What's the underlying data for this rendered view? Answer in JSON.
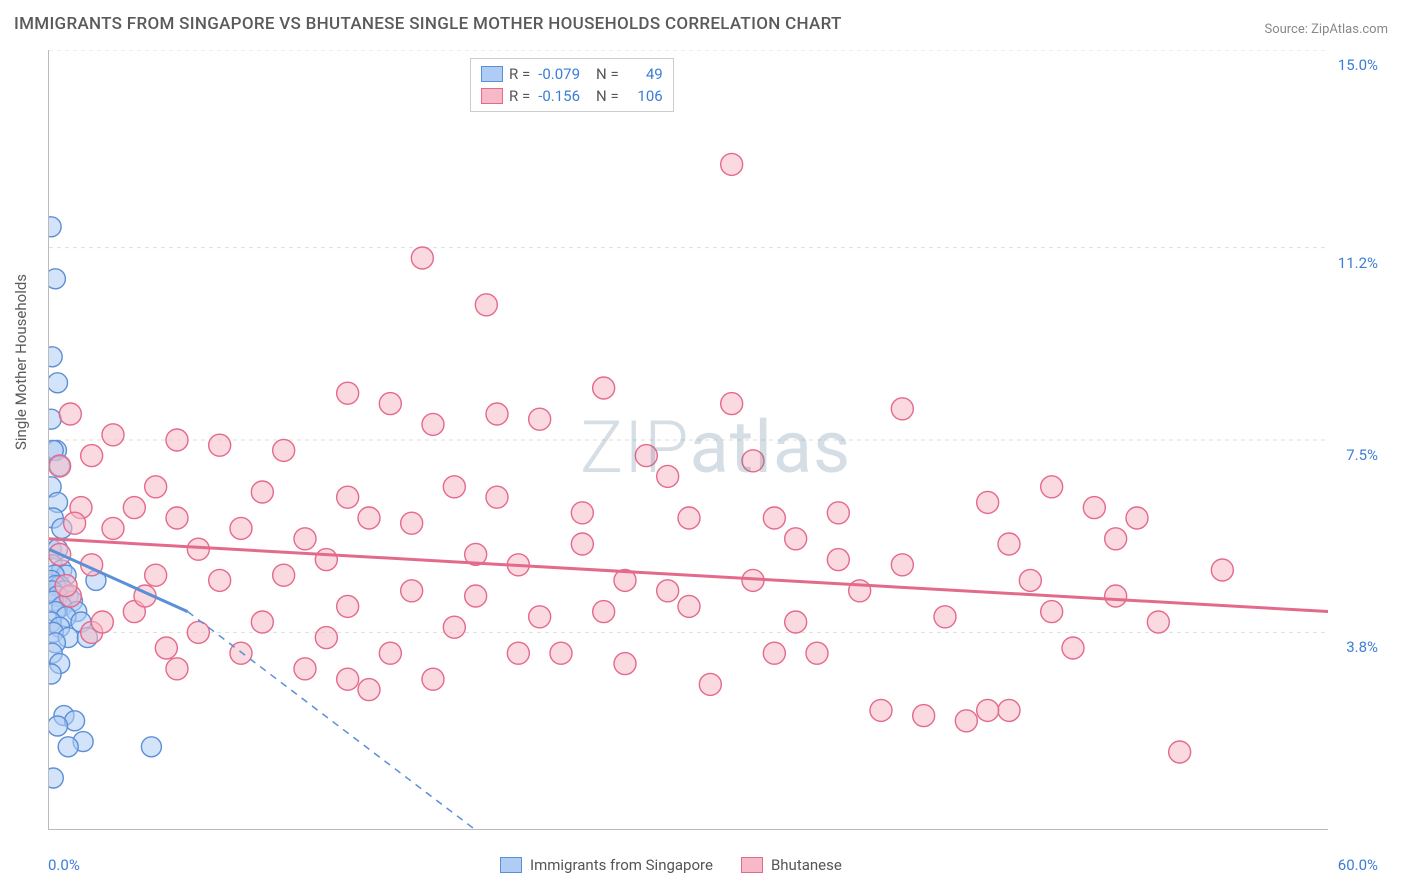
{
  "title": "IMMIGRANTS FROM SINGAPORE VS BHUTANESE SINGLE MOTHER HOUSEHOLDS CORRELATION CHART",
  "source": "Source: ZipAtlas.com",
  "y_axis_label": "Single Mother Households",
  "watermark_a": "ZIP",
  "watermark_b": "atlas",
  "chart": {
    "type": "scatter",
    "background_color": "#ffffff",
    "grid_color": "#dddddd",
    "axis_color": "#bbbbbb",
    "text_color": "#5a5a5a",
    "value_color": "#3b7dd8",
    "xlim": [
      0,
      60
    ],
    "ylim": [
      0,
      15
    ],
    "x_min_label": "0.0%",
    "x_max_label": "60.0%",
    "y_ticks": [
      {
        "v": 3.8,
        "label": "3.8%"
      },
      {
        "v": 7.5,
        "label": "7.5%"
      },
      {
        "v": 11.2,
        "label": "11.2%"
      },
      {
        "v": 15.0,
        "label": "15.0%"
      }
    ],
    "x_tick_positions": [
      6,
      12,
      18,
      24,
      30,
      36,
      42,
      48,
      54
    ],
    "series": [
      {
        "name": "Immigrants from Singapore",
        "fill": "#aeccf4",
        "stroke": "#5b8fd6",
        "fill_opacity": 0.55,
        "R": "-0.079",
        "N": "49",
        "regression": {
          "x1": 0,
          "y1": 5.4,
          "x2": 6.5,
          "y2": 4.2
        },
        "extrapolation": {
          "x1": 6.5,
          "y1": 4.2,
          "x2": 20,
          "y2": 0.0
        },
        "marker_r": 10,
        "points": [
          [
            0.1,
            11.6
          ],
          [
            0.3,
            10.6
          ],
          [
            0.15,
            9.1
          ],
          [
            0.4,
            8.6
          ],
          [
            0.1,
            7.9
          ],
          [
            0.35,
            7.3
          ],
          [
            0.2,
            7.3
          ],
          [
            0.5,
            7.0
          ],
          [
            0.1,
            6.6
          ],
          [
            0.4,
            6.3
          ],
          [
            0.2,
            6.0
          ],
          [
            0.6,
            5.8
          ],
          [
            0.1,
            5.4
          ],
          [
            0.4,
            5.4
          ],
          [
            0.15,
            5.1
          ],
          [
            0.6,
            5.0
          ],
          [
            0.8,
            4.9
          ],
          [
            0.25,
            4.9
          ],
          [
            0.1,
            4.8
          ],
          [
            0.5,
            4.7
          ],
          [
            0.3,
            4.7
          ],
          [
            0.7,
            4.6
          ],
          [
            0.15,
            4.6
          ],
          [
            0.9,
            4.5
          ],
          [
            0.4,
            4.5
          ],
          [
            1.1,
            4.4
          ],
          [
            0.2,
            4.4
          ],
          [
            0.6,
            4.3
          ],
          [
            1.3,
            4.2
          ],
          [
            0.3,
            4.2
          ],
          [
            0.8,
            4.1
          ],
          [
            0.1,
            4.0
          ],
          [
            1.5,
            4.0
          ],
          [
            0.5,
            3.9
          ],
          [
            0.2,
            3.8
          ],
          [
            0.9,
            3.7
          ],
          [
            1.8,
            3.7
          ],
          [
            0.3,
            3.6
          ],
          [
            0.15,
            3.4
          ],
          [
            0.7,
            2.2
          ],
          [
            1.2,
            2.1
          ],
          [
            0.4,
            2.0
          ],
          [
            1.6,
            1.7
          ],
          [
            0.9,
            1.6
          ],
          [
            4.8,
            1.6
          ],
          [
            0.2,
            1.0
          ],
          [
            0.5,
            3.2
          ],
          [
            0.1,
            3.0
          ],
          [
            2.2,
            4.8
          ]
        ]
      },
      {
        "name": "Bhutanese",
        "fill": "#f7b9c7",
        "stroke": "#e46a8b",
        "fill_opacity": 0.55,
        "R": "-0.156",
        "N": "106",
        "regression": {
          "x1": 0,
          "y1": 5.6,
          "x2": 60,
          "y2": 4.2
        },
        "marker_r": 11,
        "points": [
          [
            32,
            12.8
          ],
          [
            17.5,
            11.0
          ],
          [
            20.5,
            10.1
          ],
          [
            14,
            8.4
          ],
          [
            26,
            8.5
          ],
          [
            16,
            8.2
          ],
          [
            18,
            7.8
          ],
          [
            32,
            8.2
          ],
          [
            40,
            8.1
          ],
          [
            21,
            8.0
          ],
          [
            6,
            7.5
          ],
          [
            3,
            7.6
          ],
          [
            8,
            7.4
          ],
          [
            11,
            7.3
          ],
          [
            2,
            7.2
          ],
          [
            47,
            6.6
          ],
          [
            5,
            6.6
          ],
          [
            23,
            7.9
          ],
          [
            1,
            8.0
          ],
          [
            0.5,
            7.0
          ],
          [
            14,
            6.4
          ],
          [
            29,
            6.8
          ],
          [
            37,
            6.1
          ],
          [
            44,
            6.3
          ],
          [
            49,
            6.2
          ],
          [
            51,
            6.0
          ],
          [
            3,
            5.8
          ],
          [
            6,
            6.0
          ],
          [
            9,
            5.8
          ],
          [
            12,
            5.6
          ],
          [
            17,
            5.9
          ],
          [
            20,
            5.3
          ],
          [
            25,
            5.5
          ],
          [
            0.5,
            5.3
          ],
          [
            35,
            4.0
          ],
          [
            30,
            6.0
          ],
          [
            40,
            5.1
          ],
          [
            45,
            5.5
          ],
          [
            50,
            5.6
          ],
          [
            55,
            5.0
          ],
          [
            2,
            5.1
          ],
          [
            5,
            4.9
          ],
          [
            8,
            4.8
          ],
          [
            11,
            4.9
          ],
          [
            14,
            4.3
          ],
          [
            17,
            4.6
          ],
          [
            20,
            4.5
          ],
          [
            23,
            4.1
          ],
          [
            26,
            4.2
          ],
          [
            29,
            4.6
          ],
          [
            33,
            4.8
          ],
          [
            37,
            5.2
          ],
          [
            42,
            4.1
          ],
          [
            47,
            4.2
          ],
          [
            52,
            4.0
          ],
          [
            1,
            4.5
          ],
          [
            4,
            4.2
          ],
          [
            7,
            3.8
          ],
          [
            10,
            4.0
          ],
          [
            13,
            3.7
          ],
          [
            16,
            3.4
          ],
          [
            19,
            3.9
          ],
          [
            22,
            3.4
          ],
          [
            24,
            3.4
          ],
          [
            27,
            3.2
          ],
          [
            31,
            2.8
          ],
          [
            34,
            3.4
          ],
          [
            39,
            2.3
          ],
          [
            45,
            2.3
          ],
          [
            43,
            2.1
          ],
          [
            48,
            3.5
          ],
          [
            53,
            1.5
          ],
          [
            2,
            3.8
          ],
          [
            6,
            3.1
          ],
          [
            9,
            3.4
          ],
          [
            12,
            3.1
          ],
          [
            15,
            2.7
          ],
          [
            14,
            2.9
          ],
          [
            18,
            2.9
          ],
          [
            36,
            3.4
          ],
          [
            4.5,
            4.5
          ],
          [
            35,
            5.6
          ],
          [
            1.5,
            6.2
          ],
          [
            0.8,
            4.7
          ],
          [
            1.2,
            5.9
          ],
          [
            28,
            7.2
          ],
          [
            33,
            7.1
          ],
          [
            19,
            6.6
          ],
          [
            25,
            6.1
          ],
          [
            22,
            5.1
          ],
          [
            41,
            2.2
          ],
          [
            44,
            2.3
          ],
          [
            30,
            4.3
          ],
          [
            27,
            4.8
          ],
          [
            38,
            4.6
          ],
          [
            50,
            4.5
          ],
          [
            15,
            6.0
          ],
          [
            10,
            6.5
          ],
          [
            7,
            5.4
          ],
          [
            4,
            6.2
          ],
          [
            2.5,
            4.0
          ],
          [
            5.5,
            3.5
          ],
          [
            34,
            6.0
          ],
          [
            46,
            4.8
          ],
          [
            13,
            5.2
          ],
          [
            21,
            6.4
          ]
        ]
      }
    ]
  },
  "legend_top": {
    "r_label": "R =",
    "n_label": "N ="
  }
}
